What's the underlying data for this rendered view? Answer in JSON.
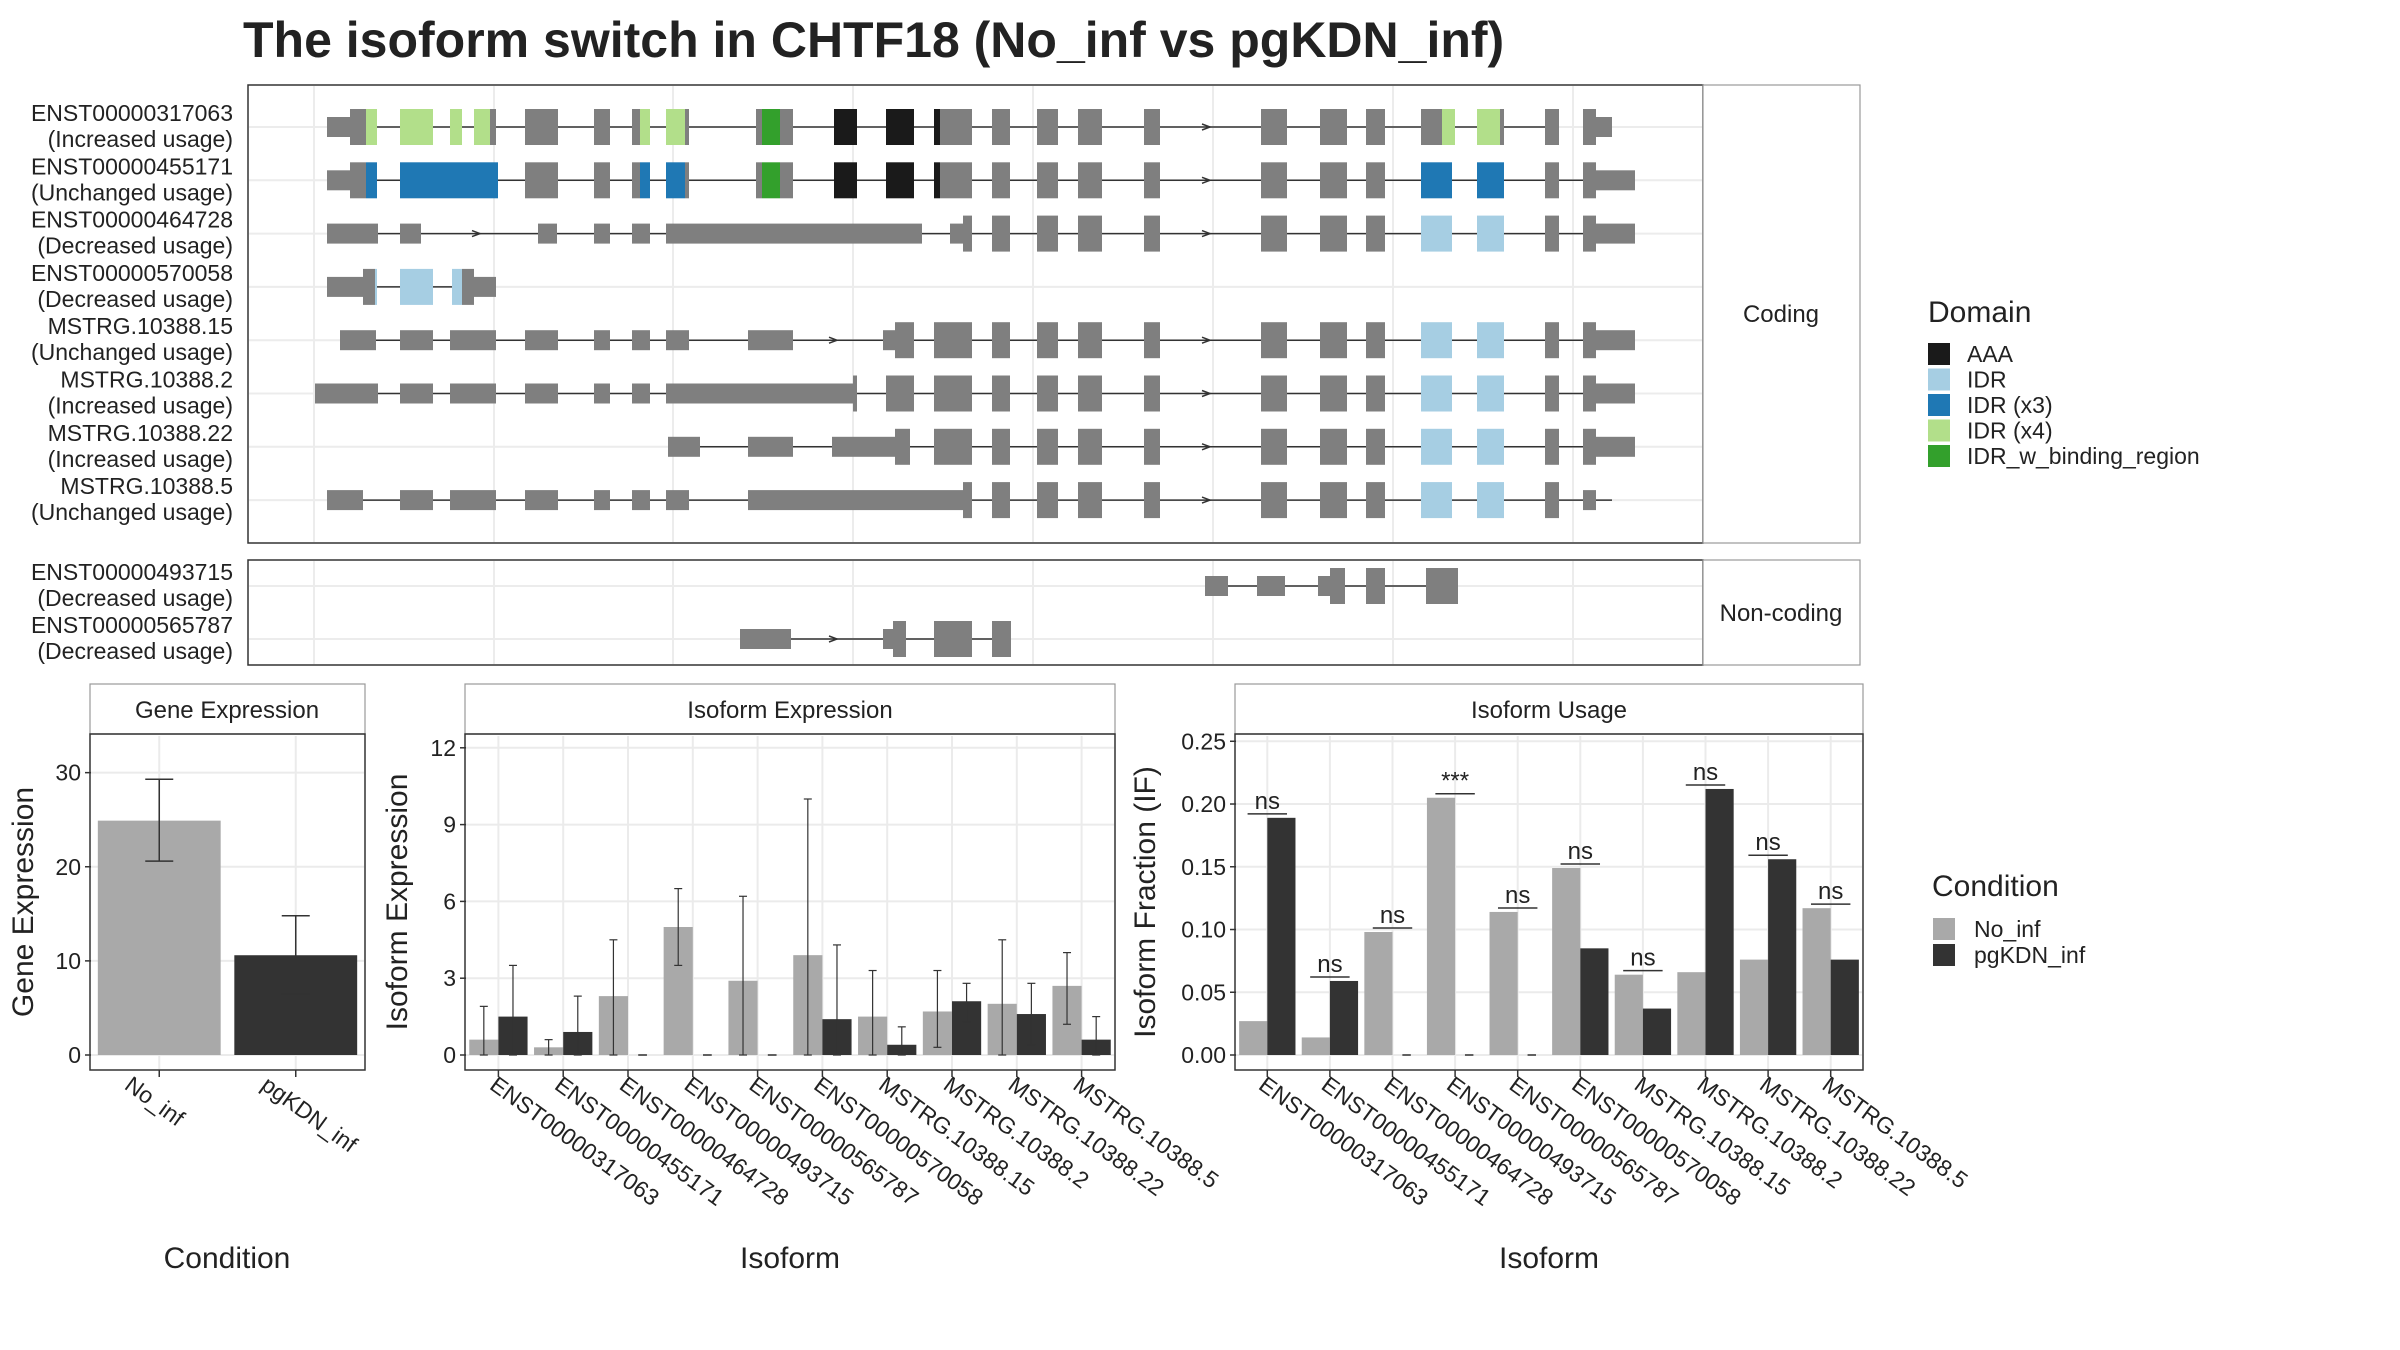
{
  "title": "The isoform switch in CHTF18 (No_inf vs pgKDN_inf)",
  "colors": {
    "exon": "#7f7f7f",
    "AAA": "#1a1a1a",
    "IDR": "#a6cee3",
    "IDR (x3)": "#1f78b4",
    "IDR (x4)": "#b2df8a",
    "IDR_w_binding_region": "#33a02c",
    "No_inf": "#a9a9a9",
    "pgKDN_inf": "#333333"
  },
  "structure": {
    "coding_label": "Coding",
    "noncoding_label": "Non-coding",
    "coding": [
      {
        "id": "ENST00000317063",
        "usage": "(Increased usage)"
      },
      {
        "id": "ENST00000455171",
        "usage": "(Unchanged usage)"
      },
      {
        "id": "ENST00000464728",
        "usage": "(Decreased usage)"
      },
      {
        "id": "ENST00000570058",
        "usage": "(Decreased usage)"
      },
      {
        "id": "MSTRG.10388.15",
        "usage": "(Unchanged usage)"
      },
      {
        "id": "MSTRG.10388.2",
        "usage": "(Increased usage)"
      },
      {
        "id": "MSTRG.10388.22",
        "usage": "(Increased usage)"
      },
      {
        "id": "MSTRG.10388.5",
        "usage": "(Unchanged usage)"
      }
    ],
    "noncoding": [
      {
        "id": "ENST00000493715",
        "usage": "(Decreased usage)"
      },
      {
        "id": "ENST00000565787",
        "usage": "(Decreased usage)"
      }
    ]
  },
  "domain_legend": {
    "title": "Domain",
    "items": [
      "AAA",
      "IDR",
      "IDR (x3)",
      "IDR (x4)",
      "IDR_w_binding_region"
    ]
  },
  "condition_legend": {
    "title": "Condition",
    "items": [
      "No_inf",
      "pgKDN_inf"
    ]
  },
  "chart_data": [
    {
      "type": "bar",
      "title": "Gene Expression",
      "xlabel": "Condition",
      "ylabel": "Gene Expression",
      "categories": [
        "No_inf",
        "pgKDN_inf"
      ],
      "values": [
        24.9,
        10.6
      ],
      "error_low": [
        20.6,
        6.5
      ],
      "error_high": [
        29.3,
        14.8
      ],
      "ylim": [
        0,
        34
      ],
      "yticks": [
        0,
        10,
        20,
        30
      ]
    },
    {
      "type": "bar",
      "title": "Isoform Expression",
      "xlabel": "Isoform",
      "ylabel": "Isoform Expression",
      "categories": [
        "ENST00000317063",
        "ENST00000455171",
        "ENST00000464728",
        "ENST00000493715",
        "ENST00000565787",
        "ENST00000570058",
        "MSTRG.10388.15",
        "MSTRG.10388.2",
        "MSTRG.10388.22",
        "MSTRG.10388.5"
      ],
      "series": [
        {
          "name": "No_inf",
          "values": [
            0.6,
            0.3,
            2.3,
            5.0,
            2.9,
            3.9,
            1.5,
            1.7,
            2.0,
            2.7
          ],
          "error_low": [
            0.0,
            0.0,
            0.0,
            3.5,
            0.0,
            0.0,
            0.0,
            0.3,
            0.0,
            1.2
          ],
          "error_high": [
            1.9,
            0.6,
            4.5,
            6.5,
            6.2,
            10.0,
            3.3,
            3.3,
            4.5,
            4.0
          ]
        },
        {
          "name": "pgKDN_inf",
          "values": [
            1.5,
            0.9,
            0.0,
            0.0,
            0.0,
            1.4,
            0.4,
            2.1,
            1.6,
            0.6
          ],
          "error_low": [
            0.0,
            0.0,
            0.0,
            0.0,
            0.0,
            0.0,
            0.0,
            1.3,
            0.4,
            0.0
          ],
          "error_high": [
            3.5,
            2.3,
            0.0,
            0.0,
            0.0,
            4.3,
            1.1,
            2.8,
            2.8,
            1.5
          ]
        }
      ],
      "ylim": [
        0,
        12.5
      ],
      "yticks": [
        0,
        3,
        6,
        9,
        12
      ]
    },
    {
      "type": "bar",
      "title": "Isoform Usage",
      "xlabel": "Isoform",
      "ylabel": "Isoform Fraction (IF)",
      "categories": [
        "ENST00000317063",
        "ENST00000455171",
        "ENST00000464728",
        "ENST00000493715",
        "ENST00000565787",
        "ENST00000570058",
        "MSTRG.10388.15",
        "MSTRG.10388.2",
        "MSTRG.10388.22",
        "MSTRG.10388.5"
      ],
      "series": [
        {
          "name": "No_inf",
          "values": [
            0.027,
            0.014,
            0.098,
            0.205,
            0.114,
            0.149,
            0.064,
            0.066,
            0.076,
            0.117
          ]
        },
        {
          "name": "pgKDN_inf",
          "values": [
            0.189,
            0.059,
            0.0,
            0.0,
            0.0,
            0.085,
            0.037,
            0.212,
            0.156,
            0.076
          ]
        }
      ],
      "significance": [
        "ns",
        "ns",
        "ns",
        "***",
        "ns",
        "ns",
        "ns",
        "ns",
        "ns",
        "ns"
      ],
      "ylim": [
        0,
        0.255
      ],
      "yticks": [
        "0.00",
        "0.05",
        "0.10",
        "0.15",
        "0.20",
        "0.25"
      ]
    }
  ]
}
